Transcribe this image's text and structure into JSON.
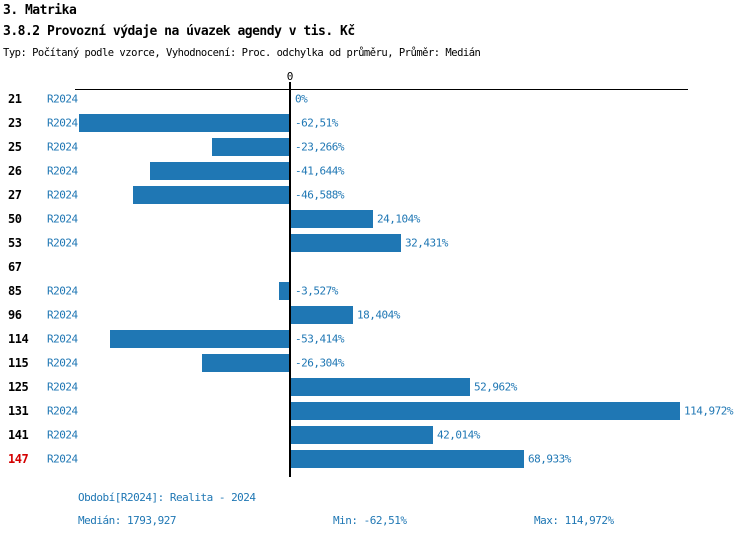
{
  "header": {
    "section_title": "3. Matrika",
    "chart_title": "3.8.2 Provozní výdaje na úvazek agendy v tis. Kč",
    "chart_subtitle": "Typ: Počítaný podle vzorce, Vyhodnocení: Proc. odchylka od průměru, Průměr: Medián"
  },
  "chart_data": {
    "type": "bar",
    "orientation": "horizontal",
    "title": "3.8.2 Provozní výdaje na úvazek agendy v tis. Kč",
    "unit": "%",
    "axis_zero_label": "0",
    "xlim": [
      -63.6,
      118.3
    ],
    "grid": false,
    "bar_color": "#1f77b4",
    "value_label_color": "#1f77b4",
    "period_label_color": "#1f77b4",
    "highlight_row_color": "#d40000",
    "rows": [
      {
        "id": "21",
        "period": "R2024",
        "value": 0,
        "label": "0%",
        "highlight": false
      },
      {
        "id": "23",
        "period": "R2024",
        "value": -62.51,
        "label": "-62,51%",
        "highlight": false
      },
      {
        "id": "25",
        "period": "R2024",
        "value": -23.266,
        "label": "-23,266%",
        "highlight": false
      },
      {
        "id": "26",
        "period": "R2024",
        "value": -41.644,
        "label": "-41,644%",
        "highlight": false
      },
      {
        "id": "27",
        "period": "R2024",
        "value": -46.588,
        "label": "-46,588%",
        "highlight": false
      },
      {
        "id": "50",
        "period": "R2024",
        "value": 24.104,
        "label": "24,104%",
        "highlight": false
      },
      {
        "id": "53",
        "period": "R2024",
        "value": 32.431,
        "label": "32,431%",
        "highlight": false
      },
      {
        "id": "67",
        "period": "",
        "value": null,
        "label": "",
        "highlight": false
      },
      {
        "id": "85",
        "period": "R2024",
        "value": -3.527,
        "label": "-3,527%",
        "highlight": false
      },
      {
        "id": "96",
        "period": "R2024",
        "value": 18.404,
        "label": "18,404%",
        "highlight": false
      },
      {
        "id": "114",
        "period": "R2024",
        "value": -53.414,
        "label": "-53,414%",
        "highlight": false
      },
      {
        "id": "115",
        "period": "R2024",
        "value": -26.304,
        "label": "-26,304%",
        "highlight": false
      },
      {
        "id": "125",
        "period": "R2024",
        "value": 52.962,
        "label": "52,962%",
        "highlight": false
      },
      {
        "id": "131",
        "period": "R2024",
        "value": 114.972,
        "label": "114,972%",
        "highlight": false
      },
      {
        "id": "141",
        "period": "R2024",
        "value": 42.014,
        "label": "42,014%",
        "highlight": false
      },
      {
        "id": "147",
        "period": "R2024",
        "value": 68.933,
        "label": "68,933%",
        "highlight": true
      }
    ]
  },
  "footer": {
    "period_label": "Období[R2024]: Realita - 2024",
    "median_label": "Medián: 1793,927",
    "min_label": "Min: -62,51%",
    "max_label": "Max: 114,972%"
  }
}
